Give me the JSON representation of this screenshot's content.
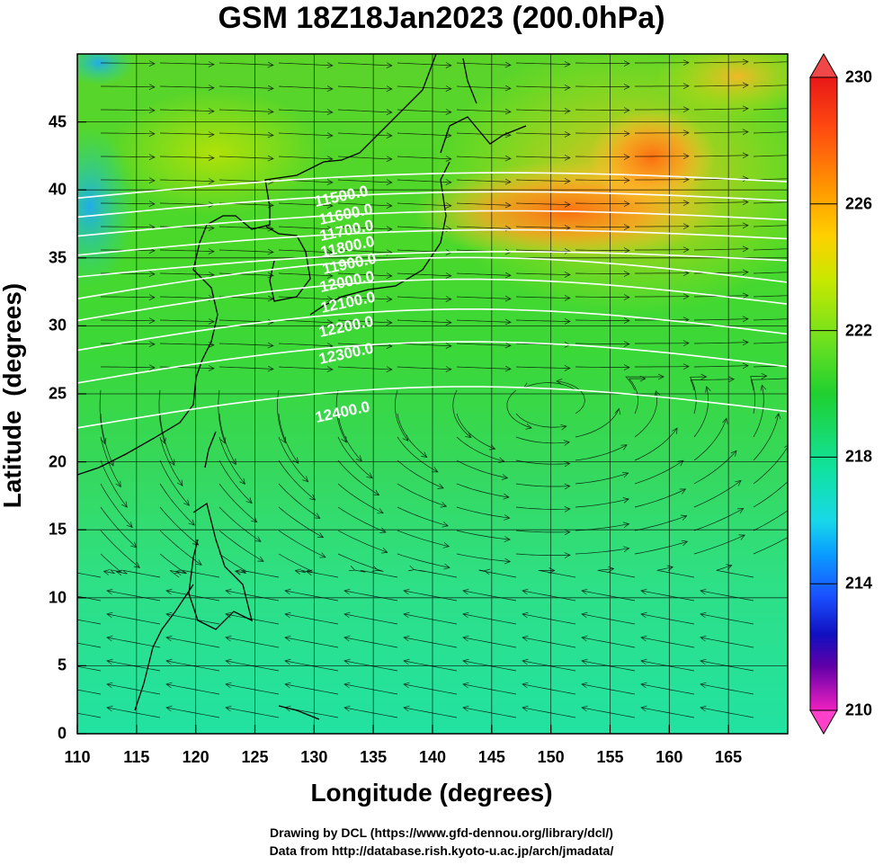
{
  "title": "GSM 18Z18Jan2023 (200.0hPa)",
  "xlabel": "Longitude (degrees)",
  "ylabel": "Latitude  (degrees)",
  "credits": {
    "line1": "Drawing by DCL (https://www.gfd-dennou.org/library/dcl/)",
    "line2": "Data from http://database.rish.kyoto-u.ac.jp/arch/jmadata/"
  },
  "x_ticks": [
    "110",
    "115",
    "120",
    "125",
    "130",
    "135",
    "140",
    "145",
    "150",
    "155",
    "160",
    "165"
  ],
  "y_ticks": [
    "0",
    "5",
    "10",
    "15",
    "20",
    "25",
    "30",
    "35",
    "40",
    "45"
  ],
  "colorbar": {
    "labels": [
      "230",
      "226",
      "222",
      "218",
      "214",
      "210"
    ],
    "colors_top_to_bottom": [
      "#f03030",
      "#ff6a00",
      "#ffc000",
      "#d6e800",
      "#7de21e",
      "#22d62b",
      "#14e5a0",
      "#1ad4e0",
      "#0aa8ff",
      "#2a6cff",
      "#1a2ae0",
      "#2a0a9a",
      "#7a00b0",
      "#e000c8",
      "#ff40c0"
    ]
  },
  "contour_labels": [
    "11500.0",
    "11600.0",
    "11700.0",
    "11800.0",
    "11900.0",
    "12000.0",
    "12100.0",
    "12200.0",
    "12300.0",
    "12400.0"
  ],
  "map": {
    "lon_range": [
      110,
      170
    ],
    "lat_range": [
      0,
      50
    ],
    "field": "temperature (K) shading with geopotential height contours and streamlines"
  },
  "colors": {
    "warm_core": "#ff8a1a",
    "midfield": "#44dc2c",
    "tropics": "#22e08a",
    "cold_edge": "#22b8e8",
    "contour": "#ffffff"
  }
}
